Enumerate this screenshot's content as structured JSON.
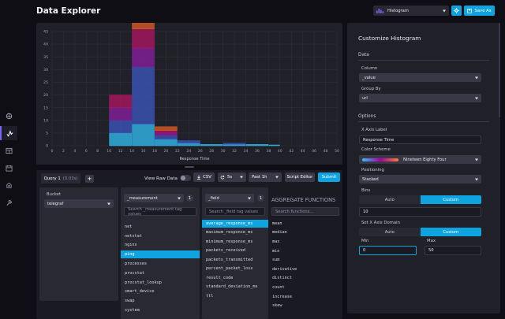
{
  "header": {
    "title": "Data Explorer",
    "vis_type": "Histogram",
    "save_label": "Save As"
  },
  "colors": {
    "accent_blue": "#0fa3e0",
    "panel": "#202029",
    "background": "#0f0e15",
    "swatch_purple": "#7a65f2"
  },
  "chart_data": {
    "type": "bar",
    "title": "",
    "xlabel": "Response Time",
    "ylabel": "",
    "xlim": [
      0,
      50
    ],
    "ylim": [
      0,
      45
    ],
    "x_ticks": [
      0,
      2,
      4,
      6,
      8,
      10,
      12,
      14,
      16,
      18,
      20,
      22,
      24,
      26,
      28,
      30,
      32,
      34,
      36,
      38,
      40,
      42,
      44,
      46,
      48,
      50
    ],
    "y_ticks": [
      0,
      5,
      10,
      15,
      20,
      25,
      30,
      35,
      40,
      45
    ],
    "bins": [
      {
        "x0": 10,
        "x1": 14,
        "stack": [
          5,
          5,
          5,
          5
        ]
      },
      {
        "x0": 14,
        "x1": 18,
        "stack": [
          8.5,
          22.5,
          7.5,
          7.5,
          3.5
        ]
      },
      {
        "x0": 18,
        "x1": 22,
        "stack": [
          2.5,
          1.5,
          1,
          1,
          1.5
        ]
      },
      {
        "x0": 22,
        "x1": 26,
        "stack": [
          1,
          1
        ]
      },
      {
        "x0": 26,
        "x1": 30,
        "stack": [
          0.5
        ]
      },
      {
        "x0": 30,
        "x1": 34,
        "stack": [
          0.5,
          0.5
        ]
      },
      {
        "x0": 34,
        "x1": 38,
        "stack": [
          0.5
        ]
      },
      {
        "x0": 38,
        "x1": 40,
        "stack": [
          0.3
        ]
      }
    ],
    "stack_colors": [
      "#31c0f6",
      "#3e58c2",
      "#8c1ea4",
      "#b31663",
      "#e25d26",
      "#f3a51e"
    ]
  },
  "query_builder": {
    "tab_label": "Query 1",
    "tab_time": "(0.03s)",
    "add_label": "+",
    "view_raw_label": "View Raw Data",
    "csv_label": "CSV",
    "refresh_label": "5s",
    "time_range": "Past 1h",
    "script_editor_label": "Script Editor",
    "submit_label": "Submit",
    "bucket": {
      "label": "Bucket",
      "value": "telegraf"
    },
    "measurement": {
      "select": "_measurement",
      "count": "1",
      "search_placeholder": "Search _measurement tag values",
      "items": [
        "net",
        "netstat",
        "nginx",
        "ping",
        "processes",
        "procstat",
        "procstat_lookup",
        "smart_device",
        "swap",
        "system"
      ],
      "selected_index": 3
    },
    "field": {
      "select": "_field",
      "count": "1",
      "search_placeholder": "Search _field tag values",
      "items": [
        "average_response_ms",
        "maximum_response_ms",
        "minimum_response_ms",
        "packets_received",
        "packets_transmitted",
        "percent_packet_loss",
        "result_code",
        "standard_deviation_ms",
        "ttl"
      ],
      "selected_index": 0
    },
    "aggregate": {
      "title": "AGGREGATE FUNCTIONS",
      "search_placeholder": "Search functions...",
      "items": [
        "mean",
        "median",
        "max",
        "min",
        "sum",
        "derivative",
        "distinct",
        "count",
        "increase",
        "skew"
      ]
    }
  },
  "customize": {
    "title": "Customize Histogram",
    "data_section": "Data",
    "column_label": "Column",
    "column_value": "_value",
    "group_by_label": "Group By",
    "group_by_value": "url",
    "options_section": "Options",
    "x_axis_label_label": "X Axis Label",
    "x_axis_label_value": "Response Time",
    "color_scheme_label": "Color Scheme",
    "color_scheme_value": "Nineteen Eighty Four",
    "positioning_label": "Positioning",
    "positioning_value": "Stacked",
    "bins_label": "Bins",
    "bins_auto": "Auto",
    "bins_custom": "Custom",
    "bins_value": "10",
    "domain_label": "Set X Axis Domain",
    "domain_auto": "Auto",
    "domain_custom": "Custom",
    "min_label": "Min",
    "min_value": "0",
    "max_label": "Max",
    "max_value": "50"
  }
}
